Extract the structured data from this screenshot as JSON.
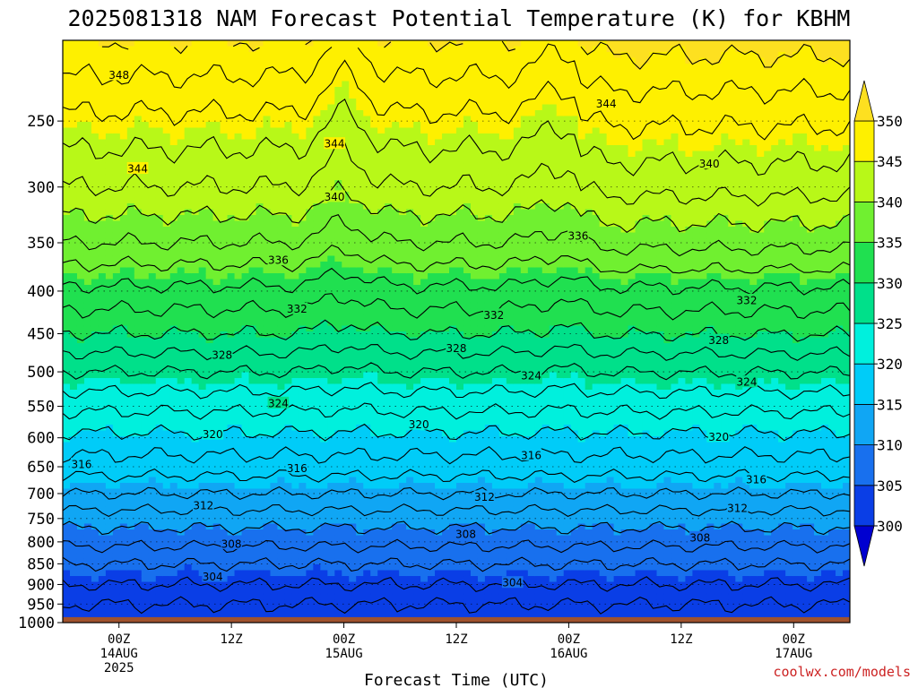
{
  "chart_data": {
    "type": "heatmap",
    "title": "2025081318 NAM Forecast Potential Temperature (K) for KBHM",
    "xlabel": "Forecast Time (UTC)",
    "credit": "coolwx.com/models",
    "x_ticks": [
      {
        "hours": 6,
        "lines": [
          "00Z",
          "14AUG",
          "2025"
        ]
      },
      {
        "hours": 18,
        "lines": [
          "12Z"
        ]
      },
      {
        "hours": 30,
        "lines": [
          "00Z",
          "15AUG"
        ]
      },
      {
        "hours": 42,
        "lines": [
          "12Z"
        ]
      },
      {
        "hours": 54,
        "lines": [
          "00Z",
          "16AUG"
        ]
      },
      {
        "hours": 66,
        "lines": [
          "12Z"
        ]
      },
      {
        "hours": 78,
        "lines": [
          "00Z",
          "17AUG"
        ]
      }
    ],
    "x_range_hours": [
      0,
      84
    ],
    "y_ticks": [
      "250",
      "300",
      "350",
      "400",
      "450",
      "500",
      "550",
      "600",
      "650",
      "700",
      "750",
      "800",
      "850",
      "900",
      "950",
      "1000"
    ],
    "y_range_hPa": [
      200,
      1000
    ],
    "y_scale": "log",
    "surface_pressure_hPa": 985,
    "colorbar": {
      "levels": [
        300,
        305,
        310,
        315,
        320,
        325,
        330,
        335,
        340,
        345,
        350
      ],
      "tick_labels": [
        "300",
        "305",
        "310",
        "315",
        "320",
        "325",
        "330",
        "335",
        "340",
        "345",
        "350"
      ],
      "colors": [
        "#0000d0",
        "#0a3ee6",
        "#1870ee",
        "#10a6f4",
        "#00ccf8",
        "#00f0dd",
        "#00e08a",
        "#20e050",
        "#70f030",
        "#b8f818",
        "#fef000",
        "#fde020"
      ],
      "extend": "both"
    },
    "contour_interval": 2,
    "profile_pressure_hPa": [
      200,
      250,
      300,
      350,
      400,
      450,
      500,
      550,
      600,
      650,
      700,
      750,
      800,
      850,
      900,
      950,
      985
    ],
    "profile_theta_K": [
      350,
      345.5,
      342,
      338,
      333.5,
      330,
      326,
      322.5,
      319.5,
      317,
      314,
      311,
      308.5,
      306,
      304,
      302,
      301
    ],
    "contour_labels": [
      {
        "value": "348",
        "hours": 6,
        "hPa": 220
      },
      {
        "value": "344",
        "hours": 8,
        "hPa": 285
      },
      {
        "value": "344",
        "hours": 29,
        "hPa": 266
      },
      {
        "value": "344",
        "hours": 58,
        "hPa": 238
      },
      {
        "value": "340",
        "hours": 29,
        "hPa": 308
      },
      {
        "value": "340",
        "hours": 69,
        "hPa": 281
      },
      {
        "value": "336",
        "hours": 23,
        "hPa": 367
      },
      {
        "value": "336",
        "hours": 55,
        "hPa": 343
      },
      {
        "value": "332",
        "hours": 25,
        "hPa": 420
      },
      {
        "value": "332",
        "hours": 46,
        "hPa": 427
      },
      {
        "value": "332",
        "hours": 73,
        "hPa": 410
      },
      {
        "value": "328",
        "hours": 17,
        "hPa": 477
      },
      {
        "value": "328",
        "hours": 42,
        "hPa": 468
      },
      {
        "value": "328",
        "hours": 70,
        "hPa": 458
      },
      {
        "value": "324",
        "hours": 23,
        "hPa": 545
      },
      {
        "value": "324",
        "hours": 50,
        "hPa": 505
      },
      {
        "value": "324",
        "hours": 73,
        "hPa": 514
      },
      {
        "value": "320",
        "hours": 16,
        "hPa": 594
      },
      {
        "value": "320",
        "hours": 38,
        "hPa": 578
      },
      {
        "value": "320",
        "hours": 70,
        "hPa": 598
      },
      {
        "value": "316",
        "hours": 2,
        "hPa": 645
      },
      {
        "value": "316",
        "hours": 25,
        "hPa": 652
      },
      {
        "value": "316",
        "hours": 50,
        "hPa": 629
      },
      {
        "value": "316",
        "hours": 74,
        "hPa": 673
      },
      {
        "value": "312",
        "hours": 15,
        "hPa": 723
      },
      {
        "value": "312",
        "hours": 45,
        "hPa": 706
      },
      {
        "value": "312",
        "hours": 72,
        "hPa": 728
      },
      {
        "value": "308",
        "hours": 18,
        "hPa": 804
      },
      {
        "value": "308",
        "hours": 43,
        "hPa": 783
      },
      {
        "value": "308",
        "hours": 68,
        "hPa": 790
      },
      {
        "value": "304",
        "hours": 16,
        "hPa": 880
      },
      {
        "value": "304",
        "hours": 48,
        "hPa": 895
      }
    ]
  }
}
